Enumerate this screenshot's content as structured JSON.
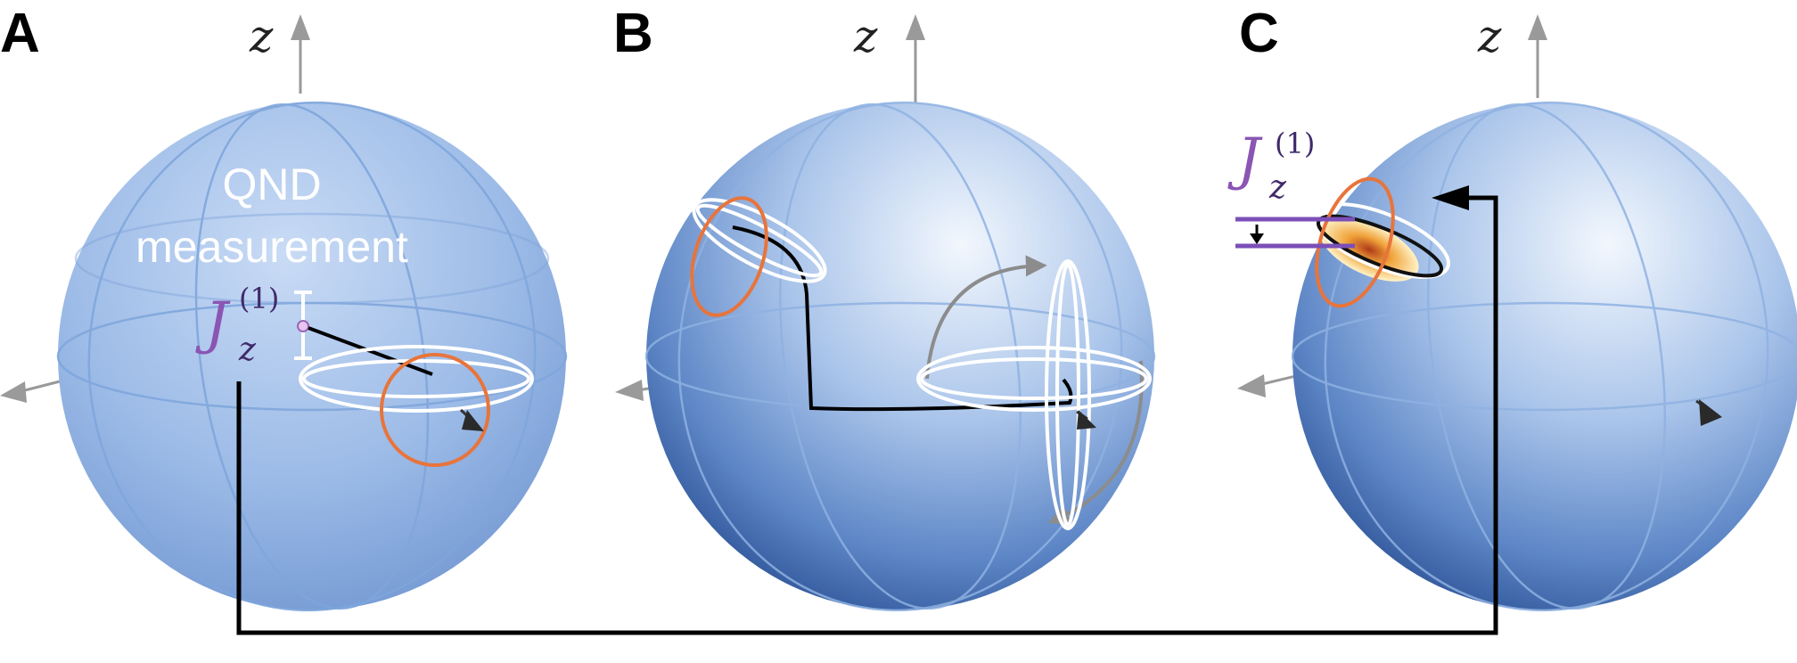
{
  "panels": [
    {
      "label": "A",
      "axis_label": "z"
    },
    {
      "label": "B",
      "axis_label": "z"
    },
    {
      "label": "C",
      "axis_label": "z"
    }
  ],
  "annotation_a": {
    "line1": "QND",
    "line2": "measurement",
    "symbol": "J",
    "subscript": "z",
    "superscript": "(1)"
  },
  "annotation_c": {
    "symbol": "J",
    "subscript": "z",
    "superscript": "(1)"
  },
  "colors": {
    "sphere_light": "#dbe7f8",
    "sphere_dark": "#3c68ac",
    "orange_circle": "#e8743b",
    "purple": "#7b4fb8",
    "gray_arrow": "#8c8c8c",
    "feedback_line": "#000000"
  }
}
